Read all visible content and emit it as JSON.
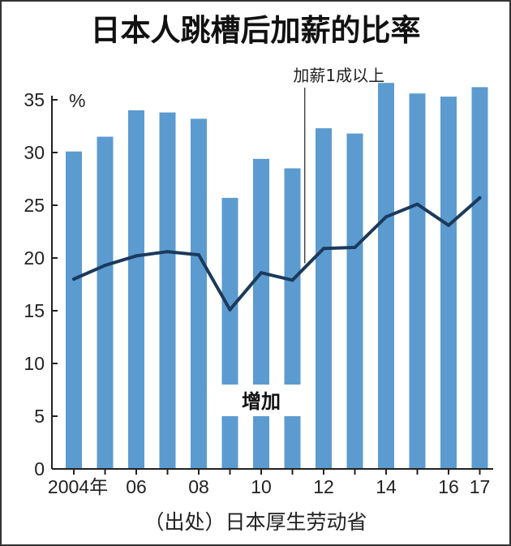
{
  "chart_data": {
    "type": "bar",
    "title": "日本人跳槽后加薪的比率",
    "unit_label": "%",
    "categories": [
      "2004",
      "2005",
      "2006",
      "2007",
      "2008",
      "2009",
      "2010",
      "2011",
      "2012",
      "2013",
      "2014",
      "2015",
      "2016",
      "2017"
    ],
    "x_tick_labels": [
      {
        "category": "2004",
        "text": "2004年"
      },
      {
        "category": "2006",
        "text": "06"
      },
      {
        "category": "2008",
        "text": "08"
      },
      {
        "category": "2010",
        "text": "10"
      },
      {
        "category": "2012",
        "text": "12"
      },
      {
        "category": "2014",
        "text": "14"
      },
      {
        "category": "2016",
        "text": "16"
      },
      {
        "category": "2017",
        "text": "17"
      }
    ],
    "yticks": [
      "0",
      "5",
      "10",
      "15",
      "20",
      "25",
      "30",
      "35"
    ],
    "ylim": [
      0,
      37
    ],
    "grid": false,
    "series": [
      {
        "name": "增加",
        "type": "bar",
        "color": "#5b9bd0",
        "values": [
          30.1,
          31.5,
          34.0,
          33.8,
          33.2,
          25.7,
          29.4,
          28.5,
          32.3,
          31.8,
          36.6,
          35.6,
          35.3,
          36.2
        ]
      },
      {
        "name": "加薪1成以上",
        "type": "line",
        "color": "#1b3a5c",
        "values": [
          18.0,
          19.3,
          20.2,
          20.6,
          20.3,
          15.1,
          18.6,
          17.9,
          20.9,
          21.0,
          23.9,
          25.1,
          23.1,
          25.7
        ]
      }
    ],
    "annotations": [
      {
        "text": "加薪1成以上",
        "target_series": "加薪1成以上"
      },
      {
        "text": "增加",
        "target_series": "增加"
      }
    ],
    "source": "（出处）日本厚生劳动省"
  }
}
